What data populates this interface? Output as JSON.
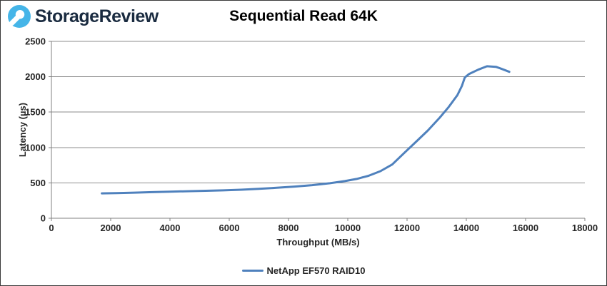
{
  "header": {
    "brand": "StorageReview",
    "brand_color": "#1a2b40",
    "logo_color": "#45b5e8"
  },
  "chart_data": {
    "type": "line",
    "title": "Sequential Read 64K",
    "xlabel": "Throughput (MB/s)",
    "ylabel": "Latency (µs)",
    "xlim": [
      0,
      18000
    ],
    "ylim": [
      0,
      2500
    ],
    "x_ticks": [
      0,
      2000,
      4000,
      6000,
      8000,
      10000,
      12000,
      14000,
      16000,
      18000
    ],
    "y_ticks": [
      0,
      500,
      1000,
      1500,
      2000,
      2500
    ],
    "grid": "horizontal",
    "grid_color": "#8e8e8e",
    "axis_color": "#808080",
    "legend_position": "bottom",
    "series": [
      {
        "name": "NetApp EF570 RAID10",
        "color": "#4f81bd",
        "points": [
          [
            1700,
            352
          ],
          [
            2200,
            356
          ],
          [
            2800,
            362
          ],
          [
            3400,
            369
          ],
          [
            4000,
            376
          ],
          [
            4600,
            382
          ],
          [
            5200,
            388
          ],
          [
            5800,
            394
          ],
          [
            6400,
            403
          ],
          [
            7000,
            415
          ],
          [
            7600,
            430
          ],
          [
            8200,
            448
          ],
          [
            8800,
            468
          ],
          [
            9400,
            495
          ],
          [
            9900,
            525
          ],
          [
            10300,
            555
          ],
          [
            10700,
            600
          ],
          [
            11100,
            665
          ],
          [
            11500,
            760
          ],
          [
            11900,
            920
          ],
          [
            12300,
            1080
          ],
          [
            12700,
            1240
          ],
          [
            13100,
            1420
          ],
          [
            13400,
            1570
          ],
          [
            13700,
            1740
          ],
          [
            13850,
            1870
          ],
          [
            13950,
            1990
          ],
          [
            14100,
            2040
          ],
          [
            14400,
            2100
          ],
          [
            14700,
            2148
          ],
          [
            15000,
            2140
          ],
          [
            15200,
            2110
          ],
          [
            15450,
            2070
          ]
        ]
      }
    ]
  }
}
